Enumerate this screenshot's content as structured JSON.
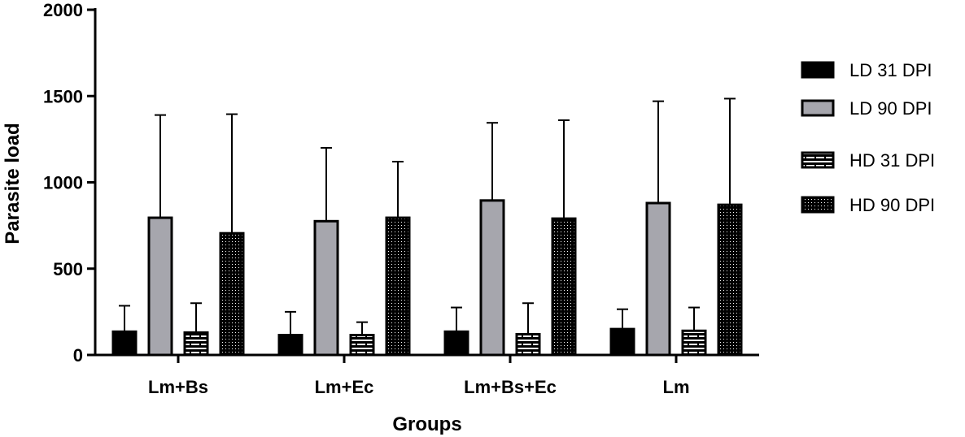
{
  "chart_data": {
    "type": "bar",
    "title": "",
    "xlabel": "Groups",
    "ylabel": "Parasite load",
    "ylim": [
      0,
      2000
    ],
    "yticks": [
      0,
      500,
      1000,
      1500,
      2000
    ],
    "categories": [
      "Lm+Bs",
      "Lm+Ec",
      "Lm+Bs+Ec",
      "Lm"
    ],
    "grid": false,
    "legend": "right",
    "series": [
      {
        "name": "LD 31 DPI",
        "values": [
          135,
          115,
          135,
          150
        ],
        "error": [
          150,
          135,
          140,
          115
        ],
        "fill": "solid-black"
      },
      {
        "name": "LD 90 DPI",
        "values": [
          795,
          775,
          895,
          880
        ],
        "error": [
          595,
          425,
          450,
          590
        ],
        "fill": "solid-gray"
      },
      {
        "name": "HD 31 DPI",
        "values": [
          130,
          115,
          120,
          140
        ],
        "error": [
          170,
          75,
          180,
          135
        ],
        "fill": "brick-pattern"
      },
      {
        "name": "HD 90 DPI",
        "values": [
          705,
          795,
          790,
          870
        ],
        "error": [
          690,
          325,
          570,
          615
        ],
        "fill": "dot-pattern"
      }
    ],
    "colors": {
      "axis": "#000000",
      "solid_black": "#000000",
      "solid_gray": "#a6a6ad"
    }
  }
}
